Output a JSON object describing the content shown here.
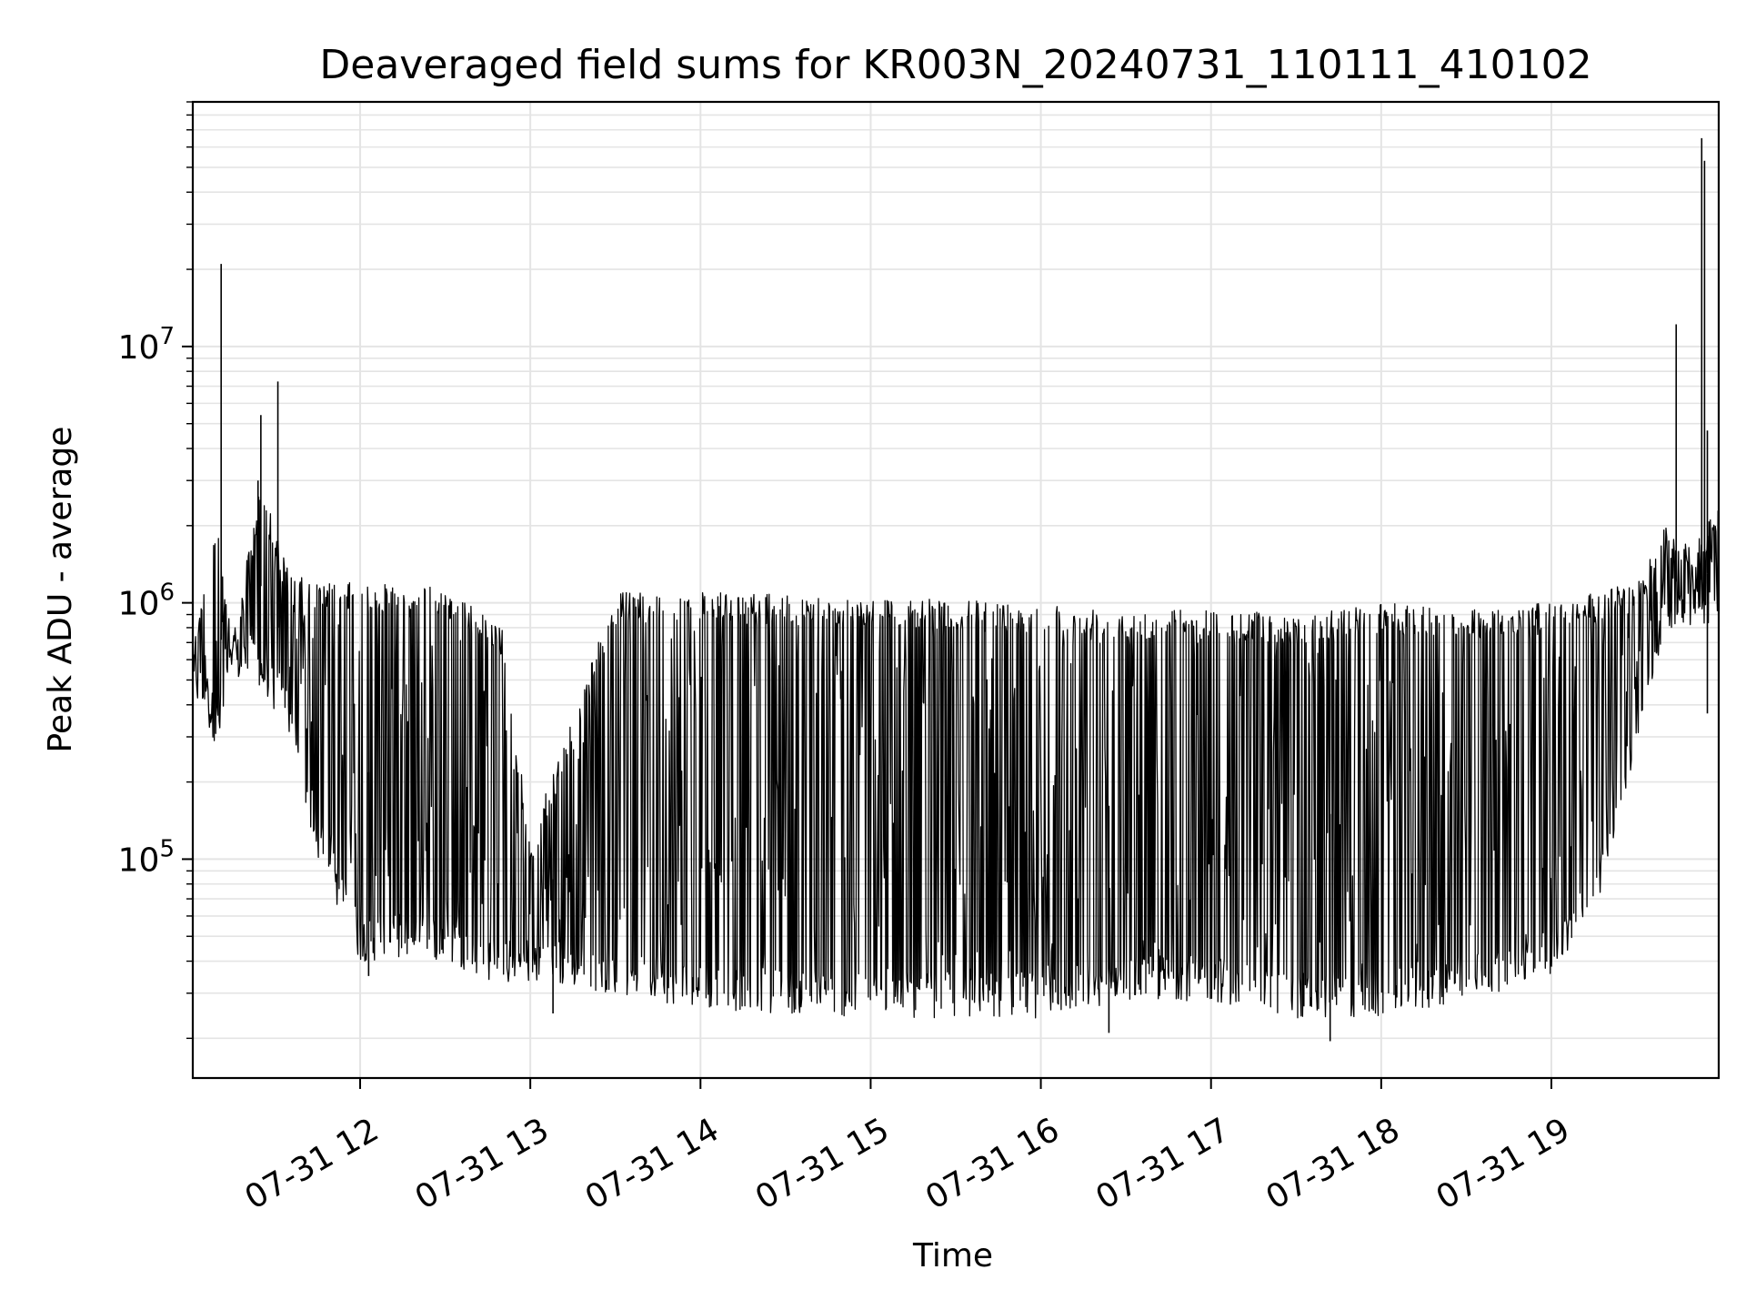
{
  "chart_data": {
    "type": "line",
    "title": "Deaveraged field sums for KR003N_20240731_110111_410102",
    "xlabel": "Time",
    "ylabel": "Peak ADU - average",
    "yscale": "log",
    "ylim": [
      14000,
      90000000
    ],
    "xlim": [
      "2024-07-31 11:01",
      "2024-07-31 19:59"
    ],
    "grid": true,
    "x_ticks": [
      {
        "t": "2024-07-31 12:00",
        "label": "07-31 12"
      },
      {
        "t": "2024-07-31 13:00",
        "label": "07-31 13"
      },
      {
        "t": "2024-07-31 14:00",
        "label": "07-31 14"
      },
      {
        "t": "2024-07-31 15:00",
        "label": "07-31 15"
      },
      {
        "t": "2024-07-31 16:00",
        "label": "07-31 16"
      },
      {
        "t": "2024-07-31 17:00",
        "label": "07-31 17"
      },
      {
        "t": "2024-07-31 18:00",
        "label": "07-31 18"
      },
      {
        "t": "2024-07-31 19:00",
        "label": "07-31 19"
      }
    ],
    "y_ticks": [
      {
        "v": 100000,
        "base": "10",
        "exp": "5"
      },
      {
        "v": 1000000,
        "base": "10",
        "exp": "6"
      },
      {
        "v": 10000000,
        "base": "10",
        "exp": "7"
      }
    ],
    "series": [
      {
        "color": "#000000",
        "note_points": "approximate envelope of the dense signal (upper, lower) sampled through time",
        "envelope": [
          {
            "t": "2024-07-31 11:01",
            "upper": 750000,
            "lower": 420000
          },
          {
            "t": "2024-07-31 11:10",
            "upper": 2100000,
            "lower": 270000
          },
          {
            "t": "2024-07-31 11:15",
            "upper": 700000,
            "lower": 500000
          },
          {
            "t": "2024-07-31 11:25",
            "upper": 3000000,
            "lower": 450000
          },
          {
            "t": "2024-07-31 11:35",
            "upper": 1300000,
            "lower": 300000
          },
          {
            "t": "2024-07-31 11:45",
            "upper": 1200000,
            "lower": 100000
          },
          {
            "t": "2024-07-31 12:00",
            "upper": 1200000,
            "lower": 40000
          },
          {
            "t": "2024-07-31 12:30",
            "upper": 1150000,
            "lower": 40000
          },
          {
            "t": "2024-07-31 12:50",
            "upper": 800000,
            "lower": 32000
          },
          {
            "t": "2024-07-31 13:00",
            "upper": 120000,
            "lower": 33000
          },
          {
            "t": "2024-07-31 13:30",
            "upper": 1100000,
            "lower": 30000
          },
          {
            "t": "2024-07-31 14:00",
            "upper": 1100000,
            "lower": 26000
          },
          {
            "t": "2024-07-31 15:00",
            "upper": 1050000,
            "lower": 24000
          },
          {
            "t": "2024-07-31 16:00",
            "upper": 1000000,
            "lower": 24000
          },
          {
            "t": "2024-07-31 16:30",
            "upper": 950000,
            "lower": 28000
          },
          {
            "t": "2024-07-31 17:00",
            "upper": 950000,
            "lower": 28000
          },
          {
            "t": "2024-07-31 17:30",
            "upper": 900000,
            "lower": 24000
          },
          {
            "t": "2024-07-31 18:00",
            "upper": 1000000,
            "lower": 24000
          },
          {
            "t": "2024-07-31 18:30",
            "upper": 950000,
            "lower": 28000
          },
          {
            "t": "2024-07-31 19:00",
            "upper": 1000000,
            "lower": 35000
          },
          {
            "t": "2024-07-31 19:15",
            "upper": 1100000,
            "lower": 60000
          },
          {
            "t": "2024-07-31 19:30",
            "upper": 1200000,
            "lower": 250000
          },
          {
            "t": "2024-07-31 19:40",
            "upper": 2000000,
            "lower": 800000
          },
          {
            "t": "2024-07-31 19:50",
            "upper": 1600000,
            "lower": 800000
          },
          {
            "t": "2024-07-31 19:59",
            "upper": 2500000,
            "lower": 850000
          }
        ],
        "spikes": [
          {
            "t": "2024-07-31 11:11",
            "v": 21000000
          },
          {
            "t": "2024-07-31 11:24",
            "v": 3000000
          },
          {
            "t": "2024-07-31 11:25",
            "v": 5400000
          },
          {
            "t": "2024-07-31 11:31",
            "v": 7300000
          },
          {
            "t": "2024-07-31 12:03",
            "v": 35000
          },
          {
            "t": "2024-07-31 13:08",
            "v": 25000
          },
          {
            "t": "2024-07-31 16:24",
            "v": 21000
          },
          {
            "t": "2024-07-31 17:42",
            "v": 19500
          },
          {
            "t": "2024-07-31 19:44",
            "v": 12200000
          },
          {
            "t": "2024-07-31 19:53",
            "v": 65000000
          },
          {
            "t": "2024-07-31 19:54",
            "v": 53000000
          },
          {
            "t": "2024-07-31 19:55",
            "v": 4700000
          },
          {
            "t": "2024-07-31 19:55",
            "v": 370000
          }
        ]
      }
    ]
  }
}
